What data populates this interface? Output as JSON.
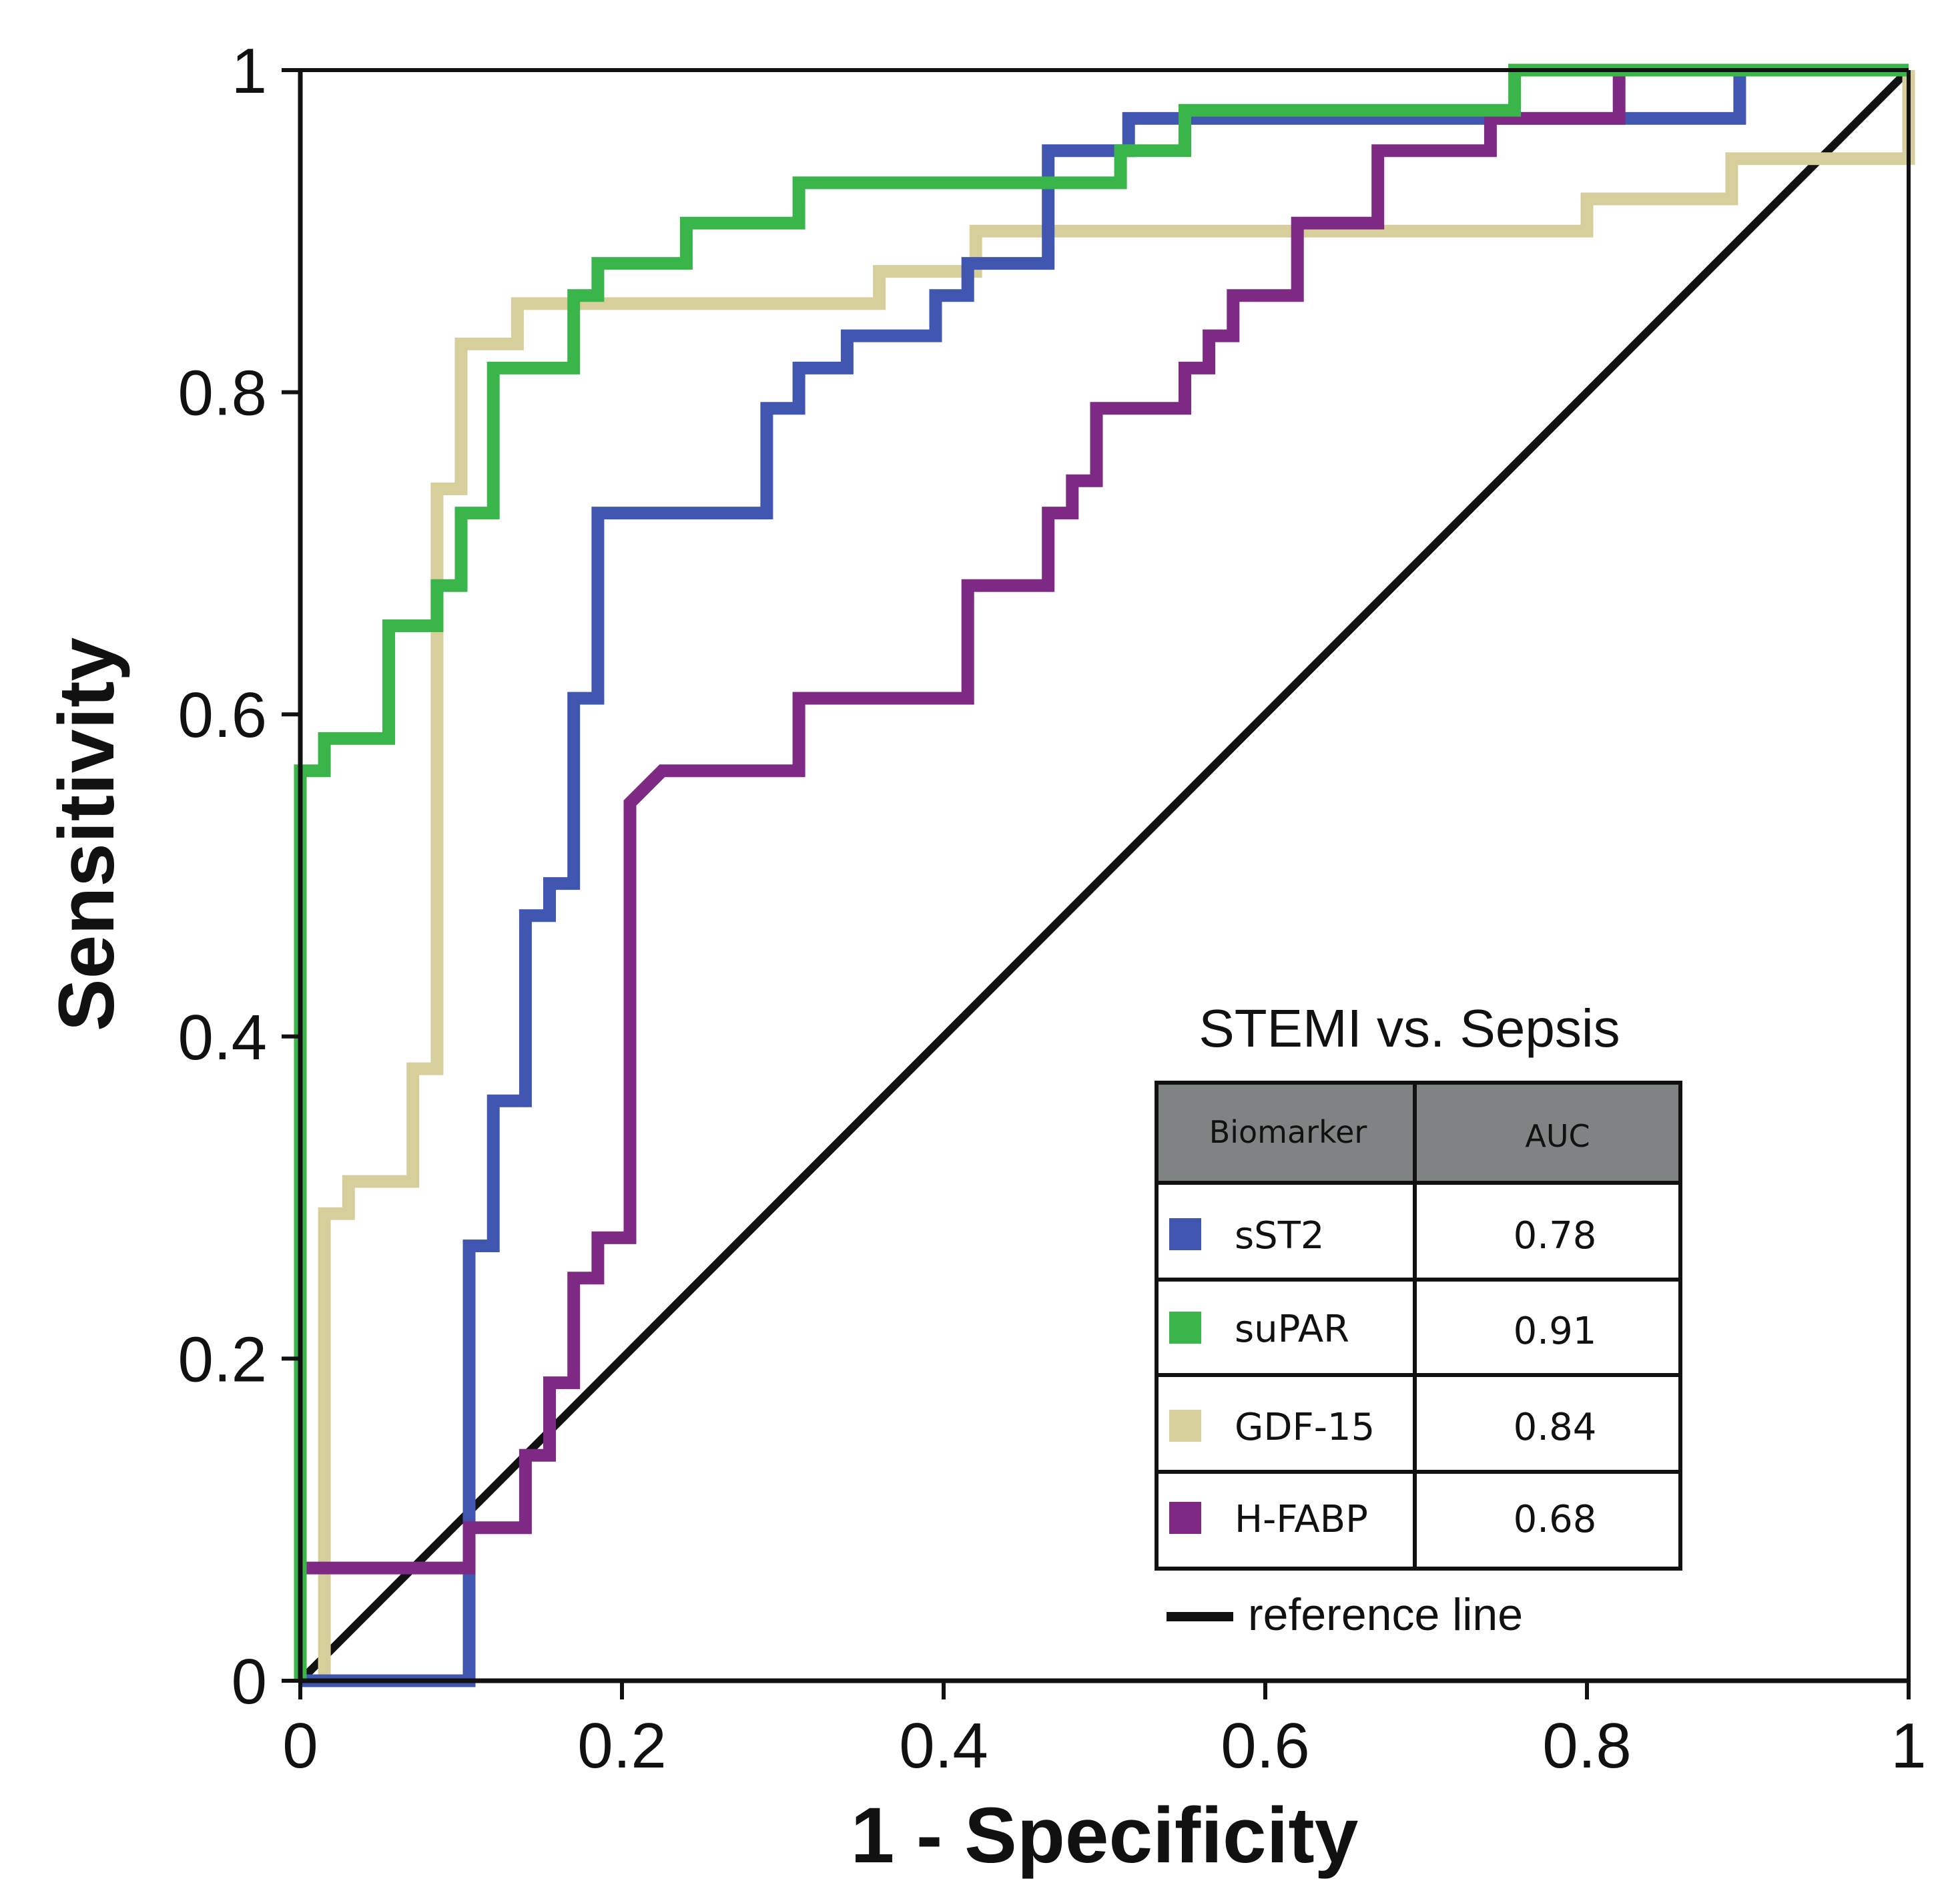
{
  "chart_data": {
    "type": "line",
    "subtype": "roc-step",
    "xlabel": "1 - Specificity",
    "ylabel": "Sensitivity",
    "xlim": [
      0,
      1
    ],
    "ylim": [
      0,
      1
    ],
    "xticks": [
      0,
      0.2,
      0.4,
      0.6,
      0.8,
      1
    ],
    "yticks": [
      0,
      0.2,
      0.4,
      0.6,
      0.8,
      1
    ],
    "xtick_labels": [
      "0",
      "0.2",
      "0.4",
      "0.6",
      "0.8",
      "1"
    ],
    "ytick_labels": [
      "0",
      "0.2",
      "0.4",
      "0.6",
      "0.8",
      "1"
    ],
    "grid": false,
    "legend": {
      "title": "STEMI vs. Sepsis",
      "placement": "bottom-right",
      "header": [
        "Biomarker",
        "AUC"
      ],
      "rows": [
        {
          "name": "sST2",
          "auc": "0.78",
          "color": "#4056b0"
        },
        {
          "name": "suPAR",
          "auc": "0.91",
          "color": "#3ab54a"
        },
        {
          "name": "GDF-15",
          "auc": "0.84",
          "color": "#d6cf9b"
        },
        {
          "name": "H-FABP",
          "auc": "0.68",
          "color": "#7e2a84"
        }
      ],
      "reference_label": "reference line",
      "header_bg": "#7f8383"
    },
    "reference_line": {
      "x": [
        0,
        1
      ],
      "y": [
        0,
        1
      ],
      "color": "#111111"
    },
    "series": [
      {
        "name": "GDF-15",
        "color": "#d6cf9b",
        "x": [
          0.015,
          0.015,
          0.03,
          0.03,
          0.07,
          0.07,
          0.085,
          0.085,
          0.1,
          0.1,
          0.115,
          0.115,
          0.135,
          0.135,
          0.36,
          0.36,
          0.42,
          0.42,
          0.8,
          0.8,
          0.89,
          0.89,
          1,
          1
        ],
        "y": [
          0,
          0.29,
          0.29,
          0.31,
          0.31,
          0.38,
          0.38,
          0.74,
          0.74,
          0.83,
          0.83,
          0.83,
          0.83,
          0.855,
          0.855,
          0.875,
          0.875,
          0.9,
          0.9,
          0.92,
          0.92,
          0.945,
          0.945,
          1
        ]
      },
      {
        "name": "sST2",
        "color": "#4056b0",
        "x": [
          0,
          0.105,
          0.105,
          0.12,
          0.12,
          0.14,
          0.14,
          0.155,
          0.155,
          0.17,
          0.17,
          0.185,
          0.185,
          0.29,
          0.29,
          0.31,
          0.31,
          0.34,
          0.34,
          0.395,
          0.395,
          0.415,
          0.415,
          0.465,
          0.465,
          0.515,
          0.515,
          0.895,
          0.895,
          1
        ],
        "y": [
          0,
          0,
          0.27,
          0.27,
          0.36,
          0.36,
          0.475,
          0.475,
          0.495,
          0.495,
          0.61,
          0.61,
          0.725,
          0.725,
          0.79,
          0.79,
          0.815,
          0.815,
          0.835,
          0.835,
          0.86,
          0.86,
          0.88,
          0.88,
          0.95,
          0.95,
          0.97,
          0.97,
          1,
          1
        ]
      },
      {
        "name": "H-FABP",
        "color": "#7e2a84",
        "x": [
          0,
          0,
          0.105,
          0.105,
          0.14,
          0.14,
          0.155,
          0.155,
          0.17,
          0.17,
          0.185,
          0.185,
          0.205,
          0.205,
          0.225,
          0.31,
          0.31,
          0.415,
          0.415,
          0.465,
          0.465,
          0.48,
          0.48,
          0.495,
          0.495,
          0.55,
          0.55,
          0.565,
          0.565,
          0.58,
          0.58,
          0.62,
          0.62,
          0.67,
          0.67,
          0.74,
          0.74,
          0.82,
          0.82,
          1
        ],
        "y": [
          0,
          0.07,
          0.07,
          0.095,
          0.095,
          0.14,
          0.14,
          0.185,
          0.185,
          0.25,
          0.25,
          0.275,
          0.275,
          0.545,
          0.565,
          0.565,
          0.61,
          0.61,
          0.68,
          0.68,
          0.725,
          0.725,
          0.745,
          0.745,
          0.79,
          0.79,
          0.815,
          0.815,
          0.835,
          0.835,
          0.86,
          0.86,
          0.905,
          0.905,
          0.95,
          0.95,
          0.97,
          0.97,
          1,
          1
        ]
      },
      {
        "name": "suPAR",
        "color": "#3ab54a",
        "x": [
          0,
          0,
          0.015,
          0.015,
          0.055,
          0.055,
          0.085,
          0.085,
          0.1,
          0.1,
          0.12,
          0.12,
          0.17,
          0.17,
          0.185,
          0.185,
          0.24,
          0.24,
          0.31,
          0.31,
          0.51,
          0.51,
          0.55,
          0.55,
          0.755,
          0.755,
          1
        ],
        "y": [
          0,
          0.565,
          0.565,
          0.585,
          0.585,
          0.655,
          0.655,
          0.68,
          0.68,
          0.725,
          0.725,
          0.815,
          0.815,
          0.86,
          0.86,
          0.88,
          0.88,
          0.905,
          0.905,
          0.93,
          0.93,
          0.95,
          0.95,
          0.975,
          0.975,
          1,
          1
        ]
      }
    ]
  }
}
